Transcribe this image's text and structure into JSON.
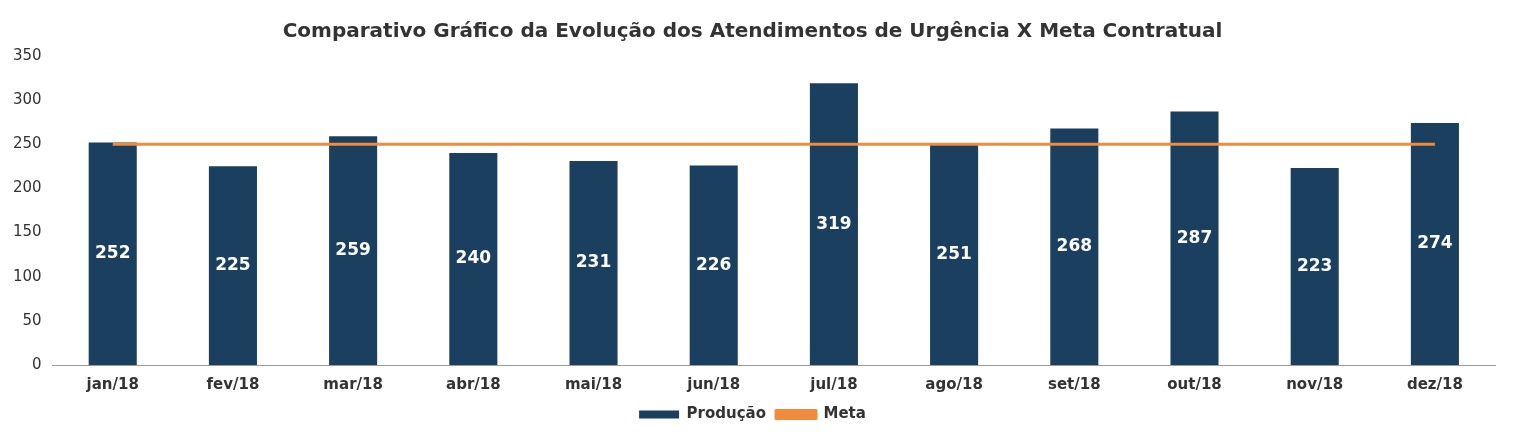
{
  "chart_data": {
    "type": "bar",
    "title": "Comparativo Gráfico da Evolução dos Atendimentos de Urgência X Meta Contratual",
    "categories": [
      "jan/18",
      "fev/18",
      "mar/18",
      "abr/18",
      "mai/18",
      "jun/18",
      "jul/18",
      "ago/18",
      "set/18",
      "out/18",
      "nov/18",
      "dez/18"
    ],
    "series": [
      {
        "name": "Produção",
        "color": "#1b3f5e",
        "values": [
          252,
          225,
          259,
          240,
          231,
          226,
          319,
          251,
          268,
          287,
          223,
          274
        ],
        "value_labels": [
          "252",
          "225",
          "259",
          "240",
          "231",
          "226",
          "319",
          "251",
          "268",
          "287",
          "223",
          "274"
        ]
      },
      {
        "name": "Meta",
        "type": "line",
        "color": "#f08a3c",
        "values": [
          250,
          250,
          250,
          250,
          250,
          250,
          250,
          250,
          250,
          250,
          250,
          250
        ]
      }
    ],
    "ylim": [
      0,
      350
    ],
    "yticks": [
      0,
      50,
      100,
      150,
      200,
      250,
      300,
      350
    ],
    "legend": "bottom",
    "grid": false,
    "marker": "none"
  }
}
